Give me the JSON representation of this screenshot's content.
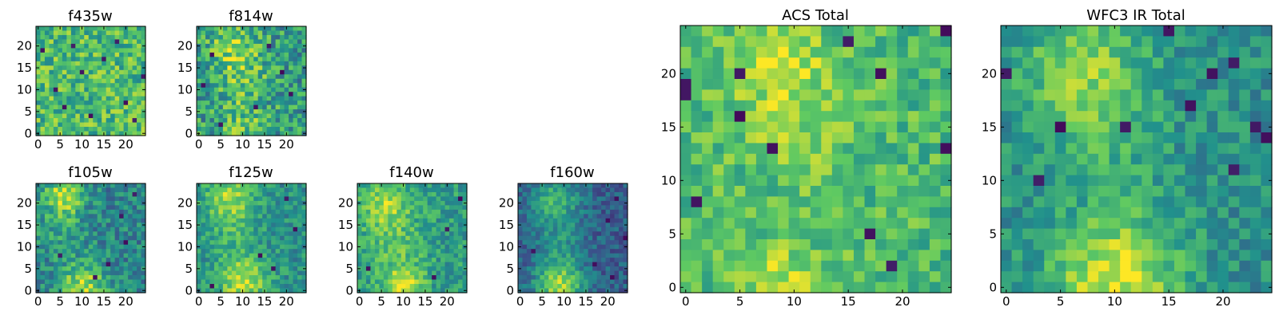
{
  "colormap": [
    "#440154",
    "#3b528b",
    "#21918c",
    "#5ec962",
    "#fde725"
  ],
  "chart_data": [
    {
      "type": "heatmap",
      "title": "f435w",
      "grid_size": 25,
      "xticks": [
        "0",
        "5",
        "10",
        "15",
        "20"
      ],
      "yticks": [
        "0",
        "5",
        "10",
        "15",
        "20"
      ],
      "xlim": [
        -0.5,
        24.5
      ],
      "ylim": [
        -0.5,
        24.5
      ],
      "seed": 11,
      "baseline": 0.68,
      "noise": 0.22,
      "blobs": [],
      "dark_cells": [
        [
          1,
          19
        ],
        [
          4,
          10
        ],
        [
          8,
          20
        ],
        [
          12,
          4
        ],
        [
          15,
          17
        ],
        [
          18,
          21
        ],
        [
          20,
          7
        ],
        [
          22,
          3
        ],
        [
          24,
          13
        ],
        [
          6,
          6
        ],
        [
          10,
          14
        ]
      ]
    },
    {
      "type": "heatmap",
      "title": "f814w",
      "grid_size": 25,
      "xticks": [
        "0",
        "5",
        "10",
        "15",
        "20"
      ],
      "yticks": [
        "0",
        "5",
        "10",
        "15",
        "20"
      ],
      "xlim": [
        -0.5,
        24.5
      ],
      "ylim": [
        -0.5,
        24.5
      ],
      "seed": 23,
      "baseline": 0.55,
      "noise": 0.24,
      "blobs": [
        [
          8,
          20,
          4,
          0.25
        ],
        [
          10,
          12,
          4,
          0.18
        ],
        [
          10,
          1,
          4,
          0.2
        ]
      ],
      "dark_cells": [
        [
          3,
          18
        ],
        [
          5,
          2
        ],
        [
          13,
          6
        ],
        [
          16,
          20
        ],
        [
          19,
          14
        ],
        [
          21,
          9
        ],
        [
          1,
          11
        ]
      ]
    },
    {
      "type": "heatmap",
      "title": "f105w",
      "grid_size": 25,
      "xticks": [
        "0",
        "5",
        "10",
        "15",
        "20"
      ],
      "yticks": [
        "0",
        "5",
        "10",
        "15",
        "20"
      ],
      "xlim": [
        -0.5,
        24.5
      ],
      "ylim": [
        -0.5,
        24.5
      ],
      "seed": 37,
      "baseline": 0.45,
      "noise": 0.18,
      "blobs": [
        [
          6,
          22,
          3,
          0.45
        ],
        [
          10,
          1,
          4,
          0.4
        ],
        [
          5,
          15,
          4,
          0.15
        ]
      ],
      "dark_cells": [
        [
          5,
          8
        ],
        [
          16,
          6
        ],
        [
          19,
          17
        ],
        [
          22,
          22
        ],
        [
          13,
          3
        ],
        [
          20,
          11
        ]
      ]
    },
    {
      "type": "heatmap",
      "title": "f125w",
      "grid_size": 25,
      "xticks": [
        "0",
        "5",
        "10",
        "15",
        "20"
      ],
      "yticks": [
        "0",
        "5",
        "10",
        "15",
        "20"
      ],
      "xlim": [
        -0.5,
        24.5
      ],
      "ylim": [
        -0.5,
        24.5
      ],
      "seed": 41,
      "baseline": 0.5,
      "noise": 0.15,
      "blobs": [
        [
          7,
          21,
          4,
          0.35
        ],
        [
          10,
          2,
          4,
          0.4
        ],
        [
          8,
          12,
          4,
          0.12
        ]
      ],
      "dark_cells": [
        [
          20,
          21
        ],
        [
          17,
          5
        ],
        [
          22,
          14
        ],
        [
          14,
          8
        ],
        [
          3,
          1
        ]
      ]
    },
    {
      "type": "heatmap",
      "title": "f140w",
      "grid_size": 25,
      "xticks": [
        "0",
        "5",
        "10",
        "15",
        "20"
      ],
      "yticks": [
        "0",
        "5",
        "10",
        "15",
        "20"
      ],
      "xlim": [
        -0.5,
        24.5
      ],
      "ylim": [
        -0.5,
        24.5
      ],
      "seed": 53,
      "baseline": 0.55,
      "noise": 0.16,
      "blobs": [
        [
          6,
          20,
          4,
          0.3
        ],
        [
          10,
          1,
          3,
          0.45
        ],
        [
          8,
          10,
          5,
          0.15
        ]
      ],
      "dark_cells": [
        [
          23,
          21
        ],
        [
          20,
          14
        ],
        [
          17,
          3
        ],
        [
          2,
          5
        ]
      ]
    },
    {
      "type": "heatmap",
      "title": "f160w",
      "grid_size": 25,
      "xticks": [
        "0",
        "5",
        "10",
        "15",
        "20"
      ],
      "yticks": [
        "0",
        "5",
        "10",
        "15",
        "20"
      ],
      "xlim": [
        -0.5,
        24.5
      ],
      "ylim": [
        -0.5,
        24.5
      ],
      "seed": 67,
      "baseline": 0.3,
      "noise": 0.13,
      "blobs": [
        [
          8,
          21,
          4,
          0.35
        ],
        [
          9,
          1,
          4,
          0.55
        ],
        [
          9,
          11,
          4,
          0.2
        ]
      ],
      "dark_cells": [
        [
          22,
          21
        ],
        [
          20,
          16
        ],
        [
          24,
          12
        ],
        [
          17,
          6
        ],
        [
          3,
          9
        ],
        [
          21,
          3
        ]
      ]
    },
    {
      "type": "heatmap",
      "title": "ACS Total",
      "grid_size": 25,
      "xticks": [
        "0",
        "5",
        "10",
        "15",
        "20"
      ],
      "yticks": [
        "0",
        "5",
        "10",
        "15",
        "20"
      ],
      "xlim": [
        -0.5,
        24.5
      ],
      "ylim": [
        -0.5,
        24.5
      ],
      "seed": 79,
      "baseline": 0.68,
      "noise": 0.16,
      "blobs": [
        [
          8,
          22,
          3,
          0.2
        ],
        [
          10,
          16,
          4,
          0.15
        ],
        [
          9,
          0,
          3,
          0.2
        ]
      ],
      "dark_cells": [
        [
          0,
          18
        ],
        [
          0,
          19
        ],
        [
          1,
          8
        ],
        [
          5,
          20
        ],
        [
          8,
          13
        ],
        [
          17,
          5
        ],
        [
          18,
          20
        ],
        [
          19,
          2
        ],
        [
          24,
          24
        ],
        [
          15,
          23
        ],
        [
          24,
          13
        ],
        [
          5,
          16
        ]
      ]
    },
    {
      "type": "heatmap",
      "title": "WFC3 IR Total",
      "grid_size": 25,
      "xticks": [
        "0",
        "5",
        "10",
        "15",
        "20"
      ],
      "yticks": [
        "0",
        "5",
        "10",
        "15",
        "20"
      ],
      "xlim": [
        -0.5,
        24.5
      ],
      "ylim": [
        -0.5,
        24.5
      ],
      "seed": 97,
      "baseline": 0.5,
      "noise": 0.14,
      "blobs": [
        [
          7,
          21,
          4,
          0.3
        ],
        [
          10,
          1,
          4,
          0.45
        ],
        [
          9,
          14,
          4,
          0.12
        ]
      ],
      "dark_cells": [
        [
          5,
          15
        ],
        [
          3,
          10
        ],
        [
          11,
          15
        ],
        [
          23,
          15
        ],
        [
          21,
          11
        ],
        [
          17,
          17
        ],
        [
          21,
          21
        ],
        [
          19,
          20
        ],
        [
          24,
          14
        ],
        [
          0,
          20
        ],
        [
          15,
          24
        ]
      ]
    }
  ]
}
